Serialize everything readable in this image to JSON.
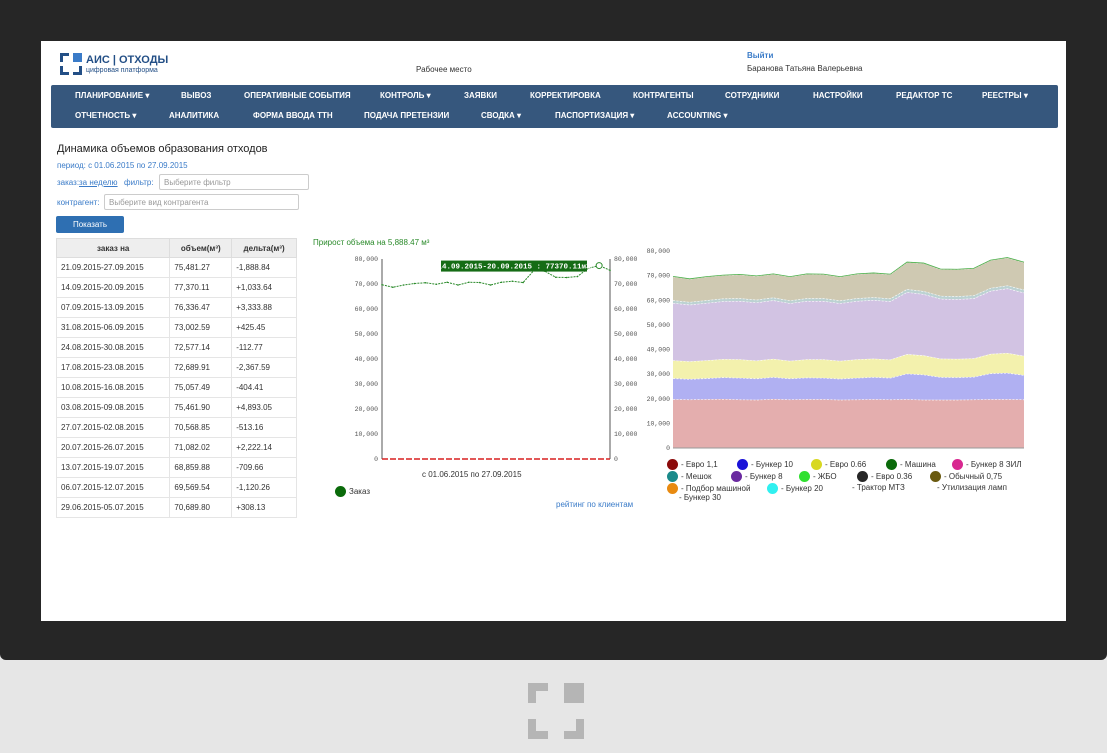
{
  "app": {
    "logo_title": "АИС | ОТХОДЫ",
    "logo_subtitle": "цифровая платформа",
    "workplace": "Рабочее место",
    "logout": "Выйти",
    "user": "Баранова Татьяна Валерьевна"
  },
  "menu": {
    "row1": [
      "ПЛАНИРОВАНИЕ ▾",
      "ВЫВОЗ",
      "ОПЕРАТИВНЫЕ СОБЫТИЯ",
      "КОНТРОЛЬ ▾",
      "ЗАЯВКИ",
      "КОРРЕКТИРОВКА",
      "КОНТРАГЕНТЫ",
      "СОТРУДНИКИ",
      "НАСТРОЙКИ",
      "РЕДАКТОР ТС",
      "РЕЕСТРЫ ▾"
    ],
    "row2": [
      "ОТЧЕТНОСТЬ ▾",
      "АНАЛИТИКА",
      "ФОРМА ВВОДА ТТН",
      "ПОДАЧА ПРЕТЕНЗИИ",
      "СВОДКА ▾",
      "ПАСПОРТИЗАЦИЯ ▾",
      "ACCOUNTING ▾"
    ]
  },
  "page": {
    "title": "Динамика объемов образования отходов",
    "period": "период: с 01.06.2015 по 27.09.2015",
    "order_label": "заказ:",
    "order_value": "за неделю",
    "filter_label": "фильтр:",
    "filter_placeholder": "Выберите фильтр",
    "contractor_label": "контрагент:",
    "contractor_placeholder": "Выберите вид контрагента",
    "show_button": "Показать"
  },
  "table": {
    "headers": [
      "заказ на",
      "объем(м³)",
      "дельта(м³)"
    ],
    "rows": [
      {
        "period": "21.09.2015-27.09.2015",
        "volume": "75,481.27",
        "delta": "-1,888.84",
        "sign": "neg"
      },
      {
        "period": "14.09.2015-20.09.2015",
        "volume": "77,370.11",
        "delta": "+1,033.64",
        "sign": "pos"
      },
      {
        "period": "07.09.2015-13.09.2015",
        "volume": "76,336.47",
        "delta": "+3,333.88",
        "sign": "pos"
      },
      {
        "period": "31.08.2015-06.09.2015",
        "volume": "73,002.59",
        "delta": "+425.45",
        "sign": "pos"
      },
      {
        "period": "24.08.2015-30.08.2015",
        "volume": "72,577.14",
        "delta": "-112.77",
        "sign": "neg"
      },
      {
        "period": "17.08.2015-23.08.2015",
        "volume": "72,689.91",
        "delta": "-2,367.59",
        "sign": "neg"
      },
      {
        "period": "10.08.2015-16.08.2015",
        "volume": "75,057.49",
        "delta": "-404.41",
        "sign": "neg"
      },
      {
        "period": "03.08.2015-09.08.2015",
        "volume": "75,461.90",
        "delta": "+4,893.05",
        "sign": "pos"
      },
      {
        "period": "27.07.2015-02.08.2015",
        "volume": "70,568.85",
        "delta": "-513.16",
        "sign": "neg"
      },
      {
        "period": "20.07.2015-26.07.2015",
        "volume": "71,082.02",
        "delta": "+2,222.14",
        "sign": "pos"
      },
      {
        "period": "13.07.2015-19.07.2015",
        "volume": "68,859.88",
        "delta": "-709.66",
        "sign": "neg"
      },
      {
        "period": "06.07.2015-12.07.2015",
        "volume": "69,569.54",
        "delta": "-1,120.26",
        "sign": "neg"
      },
      {
        "period": "29.06.2015-05.07.2015",
        "volume": "70,689.80",
        "delta": "+308.13",
        "sign": "pos"
      }
    ]
  },
  "chart_data": [
    {
      "type": "line",
      "title": "Прирост объема на 5,888.47 м³",
      "xlabel": "с 01.06.2015 по 27.09.2015",
      "ylim": [
        0,
        80000
      ],
      "yticks": [
        "0",
        "10,000",
        "20,000",
        "30,000",
        "40,000",
        "50,000",
        "60,000",
        "70,000",
        "80,000"
      ],
      "tooltip": "14.09.2015-20.09.2015 : 77370.11м3",
      "series": [
        {
          "name": "Заказ",
          "color": "#2a8a2a",
          "values": [
            69700,
            68700,
            69600,
            70200,
            70500,
            69900,
            70700,
            69600,
            70700,
            70600,
            69600,
            70700,
            71100,
            70600,
            75500,
            75100,
            72700,
            72600,
            73000,
            76300,
            77370,
            75480
          ]
        }
      ]
    },
    {
      "type": "area",
      "ylim": [
        0,
        80000
      ],
      "yticks": [
        "0",
        "10,000",
        "20,000",
        "30,000",
        "40,000",
        "50,000",
        "60,000",
        "70,000",
        "80,000"
      ],
      "layers": [
        {
          "color": "#e4aeae",
          "top": [
            19800,
            19700,
            19800,
            19900,
            19700,
            19600,
            19900,
            19700,
            19800,
            19800,
            19600,
            19700,
            19800,
            19700,
            19800,
            19600,
            19600,
            19600,
            19700,
            19800,
            19800,
            19700
          ]
        },
        {
          "color": "#b0b0f2",
          "top": [
            28300,
            28000,
            28300,
            28700,
            28500,
            28200,
            28800,
            28200,
            28600,
            28500,
            28100,
            28500,
            28800,
            28500,
            30200,
            29800,
            28800,
            28700,
            28900,
            30300,
            30500,
            29600
          ]
        },
        {
          "color": "#f3f1ad",
          "top": [
            35600,
            35200,
            35600,
            36100,
            36000,
            35500,
            36200,
            35400,
            36000,
            36000,
            35400,
            36000,
            36300,
            35900,
            38100,
            37600,
            36300,
            36200,
            36400,
            38200,
            38600,
            37400
          ]
        },
        {
          "color": "#d2c3e3",
          "top": [
            58900,
            58200,
            58900,
            59600,
            59700,
            59100,
            60000,
            58800,
            59700,
            59700,
            58800,
            59700,
            60100,
            59600,
            63300,
            62500,
            60600,
            60400,
            60800,
            63800,
            64800,
            63100
          ]
        },
        {
          "color": "#bcd2d2",
          "top": [
            60000,
            59300,
            60000,
            60700,
            60800,
            60200,
            61100,
            59900,
            60800,
            60800,
            59900,
            60800,
            61200,
            60700,
            64500,
            63700,
            61800,
            61600,
            62000,
            65000,
            66000,
            64300
          ]
        },
        {
          "color": "#cfc9b2",
          "top": [
            69700,
            68700,
            69600,
            70200,
            70500,
            69900,
            70700,
            69600,
            70700,
            70600,
            69600,
            70700,
            71100,
            70600,
            75500,
            75100,
            72700,
            72600,
            73000,
            76300,
            77370,
            75480
          ]
        }
      ],
      "legend": [
        {
          "label": "- Евро 1,1",
          "color": "#8b0a0a"
        },
        {
          "label": "- Бункер 10",
          "color": "#1a12d8"
        },
        {
          "label": "- Евро 0.66",
          "color": "#d8d820"
        },
        {
          "label": "- Машина",
          "color": "#0a6a0a"
        },
        {
          "label": "- Бункер 8 ЗИЛ",
          "color": "#d82890"
        },
        {
          "label": "- Мешок",
          "color": "#1a8a8a"
        },
        {
          "label": "- Бункер 8",
          "color": "#6a2aa0"
        },
        {
          "label": "- ЖБО",
          "color": "#30e030"
        },
        {
          "label": "- Евро 0.36",
          "color": "#262626"
        },
        {
          "label": "- Обычный 0,75",
          "color": "#6a5a10"
        },
        {
          "label": "- Подбор машиной",
          "color": "#e88a10"
        },
        {
          "label": "- Бункер 20",
          "color": "#30f0f0"
        },
        {
          "label": "- Трактор МТЗ",
          "color": ""
        },
        {
          "label": "- Утилизация ламп",
          "color": ""
        },
        {
          "label": "- Бункер 30",
          "color": ""
        }
      ]
    }
  ]
}
